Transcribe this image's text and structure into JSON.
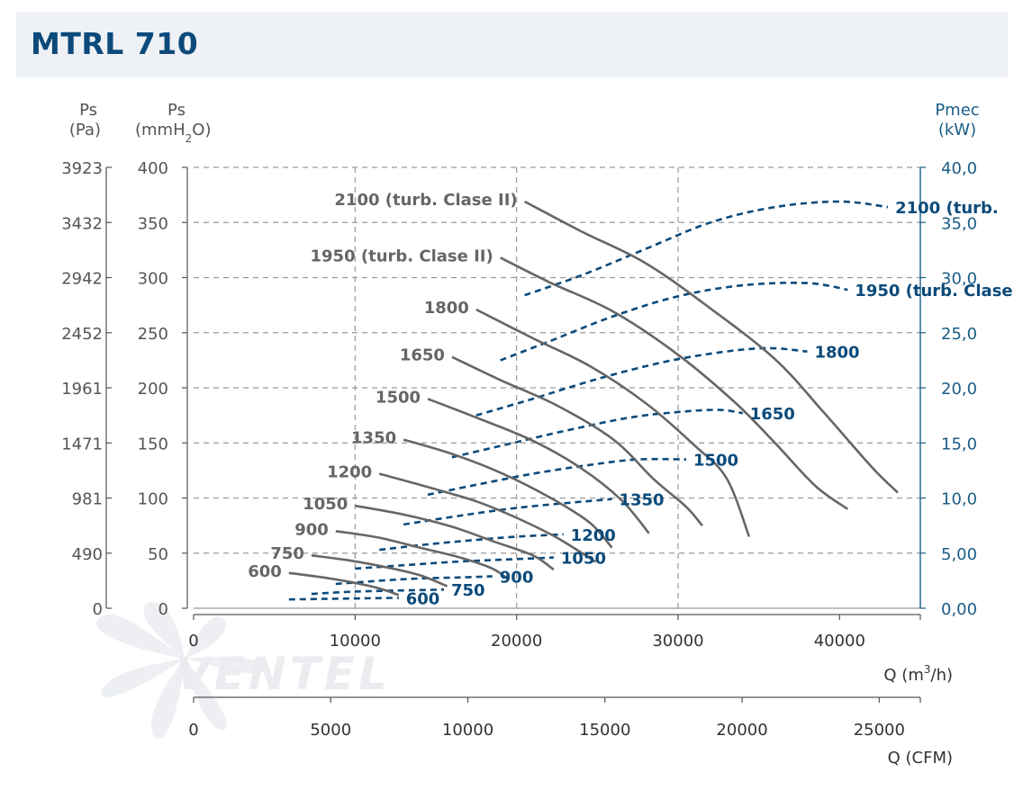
{
  "header": {
    "title": "MTRL 710"
  },
  "colors": {
    "pressure_curve": "#666666",
    "power_curve": "#0b4a7a",
    "grid": "#9a9a9a",
    "axis_dark": "#555555",
    "axis_blue": "#1a5d86"
  },
  "chart_data": {
    "type": "line",
    "title": "MTRL 710",
    "axes": {
      "ps_pa": {
        "label_line1": "Ps",
        "label_line2": "(Pa)",
        "ticks": [
          "3923",
          "3432",
          "2942",
          "2452",
          "1961",
          "1471",
          "981",
          "490",
          "0"
        ]
      },
      "ps_mmh2o": {
        "label_line1": "Ps",
        "label_line2_a": "(mmH",
        "label_line2_sub": "2",
        "label_line2_b": "O)",
        "ticks": [
          "400",
          "350",
          "300",
          "250",
          "200",
          "150",
          "100",
          "50",
          "0"
        ],
        "ylim": [
          0,
          400
        ]
      },
      "pmec": {
        "label_line1": "Pmec",
        "label_line2": "(kW)",
        "ticks": [
          "40,0",
          "35,0",
          "30,0",
          "25,0",
          "20,0",
          "15,0",
          "10,0",
          "5,00",
          "0,00"
        ],
        "ylim": [
          0,
          40
        ]
      },
      "q_m3h": {
        "label_a": "Q (m",
        "label_sup": "3",
        "label_b": "/h)",
        "ticks": [
          "0",
          "10000",
          "20000",
          "30000",
          "40000"
        ],
        "xlim": [
          0,
          45000
        ]
      },
      "q_cfm": {
        "label": "Q (CFM)",
        "ticks": [
          "0",
          "5000",
          "10000",
          "15000",
          "20000",
          "25000"
        ],
        "xlim": [
          0,
          26500
        ]
      }
    },
    "grid": true,
    "pressure_series": [
      {
        "name": "2100 (turb. Clase II)",
        "x": [
          20500,
          24000,
          28000,
          32000,
          36000,
          39000,
          42000,
          43600
        ],
        "y": [
          369,
          342,
          313,
          272,
          226,
          178,
          128,
          105
        ]
      },
      {
        "name": "1950 (turb. Clase II)",
        "x": [
          19000,
          22000,
          26000,
          30000,
          33500,
          36000,
          38500,
          40500
        ],
        "y": [
          318,
          296,
          269,
          230,
          187,
          150,
          111,
          90
        ]
      },
      {
        "name": "1800",
        "x": [
          17500,
          21000,
          24500,
          28000,
          31000,
          33000,
          34400
        ],
        "y": [
          271,
          245,
          220,
          186,
          148,
          118,
          65
        ]
      },
      {
        "name": "1650",
        "x": [
          16000,
          19000,
          22500,
          26000,
          28500,
          30500,
          31500
        ],
        "y": [
          228,
          207,
          184,
          153,
          117,
          92,
          75
        ]
      },
      {
        "name": "1500",
        "x": [
          14500,
          17500,
          21000,
          24000,
          26500,
          28200
        ],
        "y": [
          190,
          173,
          152,
          127,
          98,
          68
        ]
      },
      {
        "name": "1350",
        "x": [
          13000,
          16000,
          19000,
          22000,
          24500,
          25900
        ],
        "y": [
          153,
          140,
          123,
          101,
          78,
          55
        ]
      },
      {
        "name": "1200",
        "x": [
          11500,
          14500,
          17500,
          20000,
          22500,
          24900
        ],
        "y": [
          122,
          110,
          97,
          82,
          64,
          42
        ]
      },
      {
        "name": "1050",
        "x": [
          10000,
          13000,
          16000,
          18500,
          21000,
          22300
        ],
        "y": [
          93,
          85,
          74,
          61,
          48,
          35
        ]
      },
      {
        "name": "900",
        "x": [
          8800,
          11500,
          14000,
          16500,
          18500,
          19500
        ],
        "y": [
          70,
          64,
          55,
          46,
          36,
          26
        ]
      },
      {
        "name": "750",
        "x": [
          7300,
          9800,
          12000,
          14000,
          15700
        ],
        "y": [
          48,
          43,
          37,
          30,
          20
        ]
      },
      {
        "name": "600",
        "x": [
          5900,
          8000,
          10000,
          11500,
          12700
        ],
        "y": [
          32,
          28,
          23,
          18,
          12
        ]
      }
    ],
    "power_series": [
      {
        "name": "2100 (turb. Clase II)",
        "x": [
          20500,
          24000,
          28000,
          32000,
          36000,
          40000,
          43000
        ],
        "y": [
          28.4,
          30.2,
          32.6,
          35.0,
          36.4,
          36.9,
          36.4
        ]
      },
      {
        "name": "1950 (turb. Clase II)",
        "x": [
          19000,
          22000,
          26000,
          30000,
          34000,
          38000,
          40500
        ],
        "y": [
          22.5,
          24.2,
          26.5,
          28.3,
          29.3,
          29.5,
          28.9
        ]
      },
      {
        "name": "1800",
        "x": [
          17500,
          21000,
          25000,
          29000,
          32500,
          35500,
          38000
        ],
        "y": [
          17.5,
          19.0,
          20.8,
          22.3,
          23.2,
          23.6,
          23.3
        ]
      },
      {
        "name": "1650",
        "x": [
          16000,
          19500,
          23000,
          27000,
          30000,
          32500,
          34000
        ],
        "y": [
          13.7,
          14.9,
          16.1,
          17.3,
          17.8,
          18.0,
          17.7
        ]
      },
      {
        "name": "1500",
        "x": [
          14500,
          17500,
          21000,
          24500,
          27500,
          30500
        ],
        "y": [
          10.3,
          11.2,
          12.2,
          13.0,
          13.5,
          13.5
        ]
      },
      {
        "name": "1350",
        "x": [
          13000,
          16500,
          20000,
          23500,
          25900
        ],
        "y": [
          7.6,
          8.4,
          9.1,
          9.6,
          9.9
        ]
      },
      {
        "name": "1200",
        "x": [
          11500,
          14500,
          17500,
          20000,
          22900
        ],
        "y": [
          5.3,
          5.8,
          6.2,
          6.5,
          6.7
        ]
      },
      {
        "name": "1050",
        "x": [
          10000,
          13000,
          16000,
          19000,
          22300
        ],
        "y": [
          3.6,
          3.9,
          4.2,
          4.4,
          4.6
        ]
      },
      {
        "name": "900",
        "x": [
          8800,
          11500,
          14000,
          16500,
          18500
        ],
        "y": [
          2.2,
          2.5,
          2.7,
          2.8,
          2.9
        ]
      },
      {
        "name": "750",
        "x": [
          7300,
          9800,
          12500,
          15500
        ],
        "y": [
          1.3,
          1.5,
          1.6,
          1.7
        ]
      },
      {
        "name": "600",
        "x": [
          5900,
          8000,
          10500,
          12700
        ],
        "y": [
          0.8,
          0.85,
          0.9,
          0.95
        ]
      }
    ],
    "pressure_labels": [
      "2100 (turb. Clase II)",
      "1950 (turb. Clase II)",
      "1800",
      "1650",
      "1500",
      "1350",
      "1200",
      "1050",
      "900",
      "750",
      "600"
    ],
    "power_labels": [
      "2100 (turb.",
      "1950 (turb. Clase",
      "1800",
      "1650",
      "1500",
      "1350",
      "1200",
      "1050",
      "900",
      "750",
      "600"
    ]
  },
  "watermark": {
    "text": "VENTEL"
  }
}
